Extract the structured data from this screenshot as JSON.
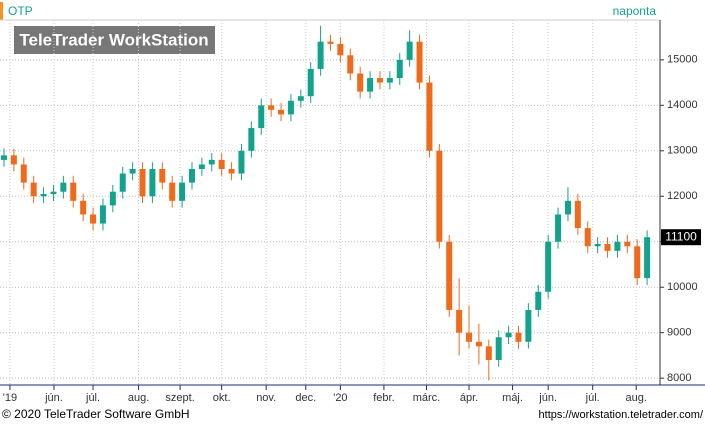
{
  "chart_data": {
    "type": "candlestick",
    "title": "OTP",
    "subtitle": "naponta",
    "watermark": "TeleTrader WorkStation",
    "footer_left": "© 2020 TeleTrader Software GmbH",
    "footer_right": "https://workstation.teletrader.com/",
    "up_color": "#13a38c",
    "down_color": "#f06a1c",
    "x": [
      0,
      1,
      2,
      3,
      4,
      5,
      6,
      7,
      8,
      9,
      10,
      11,
      12,
      13,
      14,
      15,
      16,
      17,
      18,
      19,
      20,
      21,
      22,
      23,
      24,
      25,
      26,
      27,
      28,
      29,
      30,
      31,
      32,
      33,
      34,
      35,
      36,
      37,
      38,
      39,
      40,
      41,
      42,
      43,
      44,
      45,
      46,
      47,
      48,
      49,
      50,
      51,
      52,
      53,
      54,
      55,
      56,
      57,
      58,
      59,
      60,
      61,
      62,
      63,
      64,
      65
    ],
    "open": [
      12800,
      12900,
      12700,
      12300,
      12000,
      12050,
      12100,
      12300,
      11900,
      11600,
      11400,
      11800,
      12100,
      12500,
      12600,
      12000,
      12600,
      12300,
      11900,
      12300,
      12600,
      12700,
      12800,
      12600,
      12500,
      13000,
      13500,
      14000,
      13900,
      13800,
      14100,
      14200,
      14800,
      15400,
      15350,
      15100,
      14700,
      14300,
      14600,
      14500,
      14600,
      15000,
      15400,
      14500,
      13000,
      11000,
      9500,
      9000,
      8800,
      8700,
      8400,
      8900,
      9000,
      8800,
      9500,
      9900,
      11000,
      11600,
      11900,
      11300,
      10900,
      10950,
      10800,
      11000,
      10900,
      10200
    ],
    "high": [
      13050,
      13050,
      12850,
      12450,
      12200,
      12250,
      12450,
      12450,
      12050,
      11750,
      11950,
      12250,
      12650,
      12750,
      12750,
      12750,
      12750,
      12450,
      12450,
      12750,
      12850,
      12950,
      12950,
      12750,
      13150,
      13650,
      14150,
      14150,
      14050,
      14250,
      14350,
      14950,
      15750,
      15550,
      15500,
      15250,
      14850,
      14750,
      14750,
      14750,
      15150,
      15650,
      15550,
      14650,
      13150,
      11150,
      10200,
      9600,
      9200,
      8850,
      9050,
      9150,
      9150,
      9650,
      10050,
      11150,
      11750,
      12200,
      12050,
      11450,
      11100,
      11100,
      11150,
      11150,
      11050,
      11250
    ],
    "low": [
      12650,
      12550,
      12150,
      11850,
      11850,
      11900,
      11950,
      11750,
      11450,
      11250,
      11250,
      11650,
      11950,
      12350,
      11850,
      11850,
      12150,
      11750,
      11750,
      12150,
      12450,
      12550,
      12450,
      12350,
      12350,
      12850,
      13350,
      13750,
      13650,
      13650,
      13950,
      14050,
      14650,
      15200,
      14950,
      14550,
      14150,
      14150,
      14350,
      14350,
      14450,
      14850,
      14350,
      12850,
      10850,
      9350,
      8500,
      8650,
      8300,
      7950,
      8250,
      8750,
      8650,
      8650,
      9350,
      9750,
      10850,
      11450,
      11150,
      10750,
      10750,
      10650,
      10650,
      10750,
      10050,
      10050
    ],
    "close": [
      12900,
      12700,
      12300,
      12000,
      12050,
      12100,
      12300,
      11900,
      11600,
      11400,
      11800,
      12100,
      12500,
      12600,
      12000,
      12600,
      12300,
      11900,
      12300,
      12600,
      12700,
      12800,
      12600,
      12500,
      13000,
      13500,
      14000,
      13900,
      13800,
      14100,
      14200,
      14800,
      15400,
      15350,
      15100,
      14700,
      14300,
      14600,
      14500,
      14600,
      15000,
      15400,
      14500,
      13000,
      11000,
      9500,
      9000,
      8800,
      8700,
      8400,
      8900,
      9000,
      8800,
      9500,
      9900,
      11000,
      11600,
      11900,
      11300,
      10900,
      10950,
      10800,
      11000,
      10900,
      10200,
      11100
    ],
    "last_price": 11100,
    "xlim": [
      0,
      66
    ],
    "xticks": [
      {
        "value": 0.6,
        "label": "'19"
      },
      {
        "value": 5.05,
        "label": "jún."
      },
      {
        "value": 9,
        "label": "júl."
      },
      {
        "value": 13.6,
        "label": "aug."
      },
      {
        "value": 17.8,
        "label": "szept."
      },
      {
        "value": 22,
        "label": "okt."
      },
      {
        "value": 26.5,
        "label": "nov."
      },
      {
        "value": 30.5,
        "label": "dec."
      },
      {
        "value": 34,
        "label": "'20"
      },
      {
        "value": 38.4,
        "label": "febr."
      },
      {
        "value": 42.7,
        "label": "márc."
      },
      {
        "value": 47,
        "label": "ápr."
      },
      {
        "value": 51.4,
        "label": "máj."
      },
      {
        "value": 55,
        "label": "jún."
      },
      {
        "value": 59.5,
        "label": "júl."
      },
      {
        "value": 63.9,
        "label": "aug."
      }
    ],
    "ylim": [
      7850,
      15920
    ],
    "yticks": [
      8000,
      9000,
      10000,
      11000,
      12000,
      13000,
      14000,
      15000
    ],
    "grid": true
  }
}
